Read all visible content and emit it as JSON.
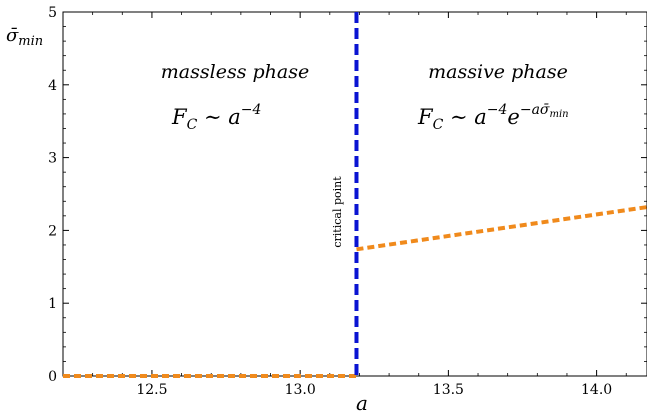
{
  "chart_data": {
    "type": "line",
    "xlabel": "a",
    "ylabel": "σ̄_min",
    "xlim": [
      12.2,
      14.17
    ],
    "ylim": [
      0,
      5
    ],
    "xticks": [
      12.5,
      13.0,
      13.5,
      14.0
    ],
    "xtick_labels": [
      "12.5",
      "13.0",
      "13.5",
      "14.0"
    ],
    "yticks": [
      0,
      1,
      2,
      3,
      4,
      5
    ],
    "ytick_labels": [
      "0",
      "1",
      "2",
      "3",
      "4",
      "5"
    ],
    "grid": false,
    "series": [
      {
        "color": "#f08a1c",
        "style": "dashed",
        "x": [
          12.2,
          13.19
        ],
        "y": [
          0,
          0
        ]
      },
      {
        "color": "#f08a1c",
        "style": "dashed",
        "x": [
          13.19,
          14.17
        ],
        "y": [
          1.74,
          2.32
        ]
      }
    ],
    "critical_point": {
      "x": 13.19,
      "color": "#0a14d2",
      "label": "critical point"
    },
    "annotations": {
      "left_phase": "massless phase",
      "right_phase": "massive phase",
      "left_formula": {
        "F": "F",
        "sub": "C",
        "rel": " ∼ a",
        "exp": "−4"
      },
      "right_formula": {
        "F": "F",
        "sub": "C",
        "rel": " ∼ a",
        "exp1": "−4",
        "e": "e",
        "exp2": "−aσ̄",
        "exp2sub": "min"
      }
    }
  }
}
